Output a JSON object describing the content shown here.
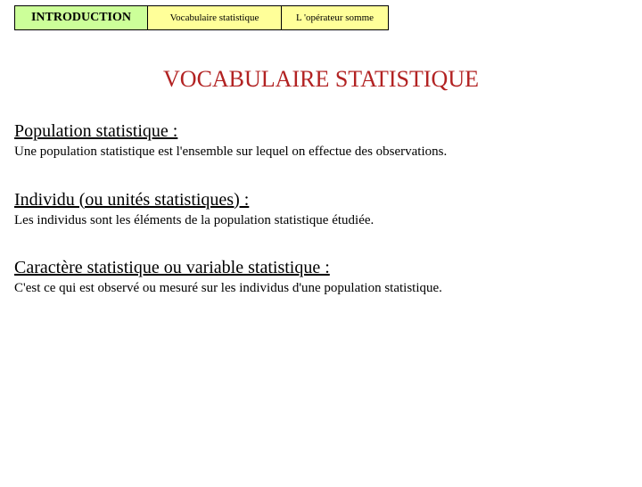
{
  "tabs": {
    "main": "INTRODUCTION",
    "sub1": "Vocabulaire statistique",
    "sub2": "L 'opérateur somme"
  },
  "title": "VOCABULAIRE STATISTIQUE",
  "sections": [
    {
      "term": "Population statistique :",
      "definition": "Une population statistique est l'ensemble sur lequel on effectue des observations."
    },
    {
      "term": "Individu (ou unités statistiques) :",
      "definition": "Les individus sont les éléments de la population statistique étudiée."
    },
    {
      "term": "Caractère statistique ou variable statistique :",
      "definition": "C'est ce qui est observé ou mesuré sur les individus d'une population statistique."
    }
  ],
  "colors": {
    "tab_main_bg": "#ccff99",
    "tab_sub_bg": "#ffff99",
    "title_color": "#b22222",
    "text_color": "#000000",
    "page_bg": "#ffffff"
  }
}
